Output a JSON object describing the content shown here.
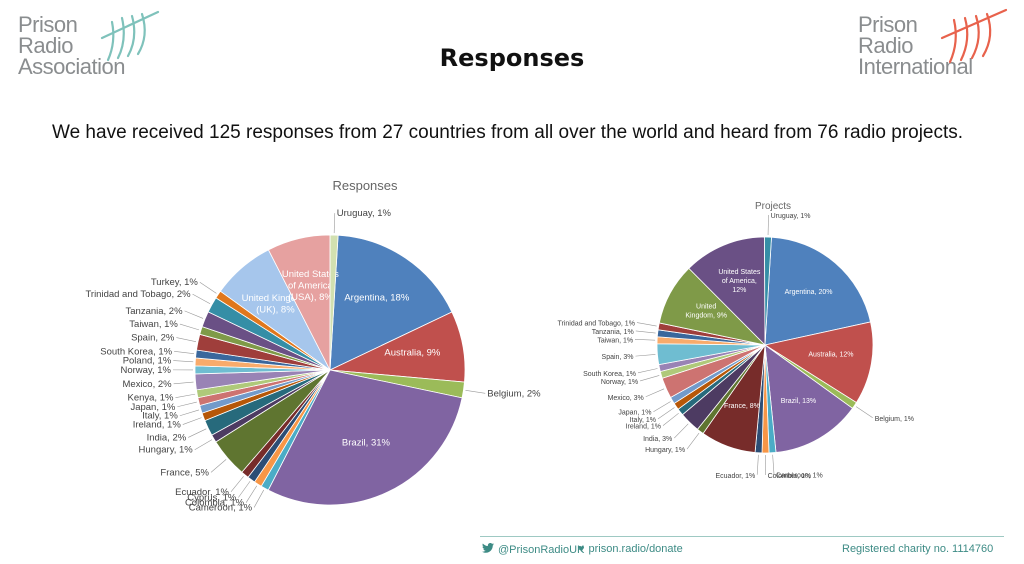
{
  "header": {
    "left_logo": [
      "Prison",
      "Radio",
      "Association"
    ],
    "right_logo": [
      "Prison",
      "Radio",
      "International"
    ],
    "title": "Responses",
    "summary": "We have received 125 responses from 27 countries from all over the world and heard from 76 radio projects."
  },
  "footer": {
    "twitter": "@PrisonRadioUK",
    "donate": "prison.radio/donate",
    "charity": "Registered charity no. 1114760"
  },
  "colors": {
    "logo_left_arcs": "#7fc2bb",
    "logo_right_arcs": "#e8624c",
    "footer_teal": "#3d8b85"
  },
  "chart_data": [
    {
      "type": "pie",
      "title": "Responses",
      "slices": [
        {
          "label": "Argentina, 18%",
          "value": 18,
          "color": "#4f81bd"
        },
        {
          "label": "Australia, 9%",
          "value": 9,
          "color": "#c0504d"
        },
        {
          "label": "Belgium, 2%",
          "value": 2,
          "color": "#9bbb59"
        },
        {
          "label": "Brazil, 31%",
          "value": 31,
          "color": "#8064a2"
        },
        {
          "label": "Cameroon, 1%",
          "value": 1,
          "color": "#4bacc6"
        },
        {
          "label": "Colombia, 1%",
          "value": 1,
          "color": "#f79646"
        },
        {
          "label": "Cyprus, 1%",
          "value": 1,
          "color": "#2c4d75"
        },
        {
          "label": "Ecuador, 1%",
          "value": 1,
          "color": "#772c2a"
        },
        {
          "label": "France, 5%",
          "value": 5,
          "color": "#5f7530"
        },
        {
          "label": "Hungary, 1%",
          "value": 1,
          "color": "#4d3b62"
        },
        {
          "label": "India, 2%",
          "value": 2,
          "color": "#276a7c"
        },
        {
          "label": "Ireland, 1%",
          "value": 1,
          "color": "#b65708"
        },
        {
          "label": "Italy, 1%",
          "value": 1,
          "color": "#729aca"
        },
        {
          "label": "Japan, 1%",
          "value": 1,
          "color": "#cd7371"
        },
        {
          "label": "Kenya, 1%",
          "value": 1,
          "color": "#afc97a"
        },
        {
          "label": "Mexico, 2%",
          "value": 2,
          "color": "#9983b5"
        },
        {
          "label": "Norway, 1%",
          "value": 1,
          "color": "#6fbdd1"
        },
        {
          "label": "Poland, 1%",
          "value": 1,
          "color": "#f9ab6b"
        },
        {
          "label": "South Korea, 1%",
          "value": 1,
          "color": "#3a679c"
        },
        {
          "label": "Spain, 2%",
          "value": 2,
          "color": "#9f3e3b"
        },
        {
          "label": "Taiwan, 1%",
          "value": 1,
          "color": "#7f9a48"
        },
        {
          "label": "Tanzania, 2%",
          "value": 2,
          "color": "#6a5085"
        },
        {
          "label": "Trinidad and Tobago, 2%",
          "value": 2,
          "color": "#358ea6"
        },
        {
          "label": "Turkey, 1%",
          "value": 1,
          "color": "#e0771c"
        },
        {
          "label": "United Kingdom (UK), 8%",
          "value": 8,
          "color": "#a6c6ec"
        },
        {
          "label": "United States of America (USA), 8%",
          "value": 8,
          "color": "#e6a1a0"
        },
        {
          "label": "Uruguay, 1%",
          "value": 1,
          "color": "#d2e0b0"
        }
      ]
    },
    {
      "type": "pie",
      "title": "Projects",
      "slices": [
        {
          "label": "Argentina, 20%",
          "value": 20,
          "color": "#4f81bd"
        },
        {
          "label": "Australia, 12%",
          "value": 12,
          "color": "#c0504d"
        },
        {
          "label": "Belgium, 1%",
          "value": 1,
          "color": "#9bbb59"
        },
        {
          "label": "Brazil, 13%",
          "value": 13,
          "color": "#8064a2"
        },
        {
          "label": "Cameroon, 1%",
          "value": 1,
          "color": "#4bacc6"
        },
        {
          "label": "Colombia, 1%",
          "value": 1,
          "color": "#f79646"
        },
        {
          "label": "Ecuador, 1%",
          "value": 1,
          "color": "#2c4d75"
        },
        {
          "label": "France, 8%",
          "value": 8,
          "color": "#772c2a"
        },
        {
          "label": "Hungary, 1%",
          "value": 1,
          "color": "#5f7530"
        },
        {
          "label": "India, 3%",
          "value": 3,
          "color": "#4d3b62"
        },
        {
          "label": "Ireland, 1%",
          "value": 1,
          "color": "#276a7c"
        },
        {
          "label": "Italy, 1%",
          "value": 1,
          "color": "#b65708"
        },
        {
          "label": "Japan, 1%",
          "value": 1,
          "color": "#729aca"
        },
        {
          "label": "Mexico, 3%",
          "value": 3,
          "color": "#cd7371"
        },
        {
          "label": "Norway, 1%",
          "value": 1,
          "color": "#afc97a"
        },
        {
          "label": "South Korea, 1%",
          "value": 1,
          "color": "#9983b5"
        },
        {
          "label": "Spain, 3%",
          "value": 3,
          "color": "#6fbdd1"
        },
        {
          "label": "Taiwan, 1%",
          "value": 1,
          "color": "#f9ab6b"
        },
        {
          "label": "Tanzania, 1%",
          "value": 1,
          "color": "#3a679c"
        },
        {
          "label": "Trinidad and Tobago, 1%",
          "value": 1,
          "color": "#9f3e3b"
        },
        {
          "label": "United Kingdom, 9%",
          "value": 9,
          "color": "#7f9a48"
        },
        {
          "label": "United States of America, 12%",
          "value": 12,
          "color": "#6a5085"
        },
        {
          "label": "Uruguay, 1%",
          "value": 1,
          "color": "#358ea6"
        }
      ]
    }
  ]
}
